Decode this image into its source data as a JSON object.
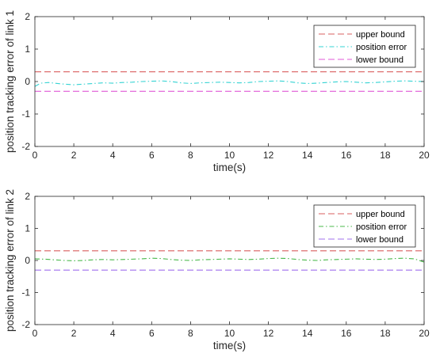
{
  "chart_data": [
    {
      "type": "line",
      "xlabel": "time(s)",
      "ylabel": "position tracking error of link 1",
      "xlim": [
        0,
        20
      ],
      "ylim": [
        -2,
        2
      ],
      "xticks": [
        0,
        2,
        4,
        6,
        8,
        10,
        12,
        14,
        16,
        18,
        20
      ],
      "yticks": [
        -2,
        -1,
        0,
        1,
        2
      ],
      "grid": false,
      "legend": "top-right",
      "series": [
        {
          "name": "upper bound",
          "color": "#d95f5f",
          "style": "dashed",
          "x": [
            0,
            20
          ],
          "y": [
            0.3,
            0.3
          ]
        },
        {
          "name": "position error",
          "color": "#35d3d3",
          "style": "dashdot",
          "x": [
            0,
            0.3,
            0.7,
            1.0,
            1.5,
            2.0,
            2.5,
            3.0,
            3.5,
            4.0,
            4.5,
            5.0,
            5.5,
            6.0,
            6.5,
            7.0,
            7.5,
            8.0,
            8.5,
            9.0,
            9.5,
            10.0,
            10.5,
            11.0,
            11.5,
            12.0,
            12.5,
            13.0,
            13.5,
            14.0,
            14.5,
            15.0,
            15.5,
            16.0,
            16.5,
            17.0,
            17.5,
            18.0,
            18.5,
            19.0,
            19.5,
            20.0
          ],
          "y": [
            -0.15,
            -0.05,
            -0.03,
            -0.05,
            -0.08,
            -0.1,
            -0.08,
            -0.06,
            -0.04,
            -0.05,
            -0.03,
            -0.02,
            0.0,
            0.01,
            0.02,
            0.0,
            -0.04,
            -0.06,
            -0.04,
            -0.03,
            -0.02,
            -0.03,
            -0.04,
            -0.03,
            0.0,
            0.01,
            0.02,
            0.0,
            -0.04,
            -0.06,
            -0.05,
            -0.03,
            -0.01,
            0.0,
            -0.02,
            -0.04,
            -0.03,
            -0.01,
            0.01,
            0.02,
            0.01,
            0.0
          ]
        },
        {
          "name": "lower bound",
          "color": "#e05ad8",
          "style": "dashed",
          "x": [
            0,
            20
          ],
          "y": [
            -0.3,
            -0.3
          ]
        }
      ]
    },
    {
      "type": "line",
      "xlabel": "time(s)",
      "ylabel": "position tracking error of link 2",
      "xlim": [
        0,
        20
      ],
      "ylim": [
        -2,
        2
      ],
      "xticks": [
        0,
        2,
        4,
        6,
        8,
        10,
        12,
        14,
        16,
        18,
        20
      ],
      "yticks": [
        -2,
        -1,
        0,
        1,
        2
      ],
      "grid": false,
      "legend": "top-right",
      "series": [
        {
          "name": "upper bound",
          "color": "#d95f5f",
          "style": "dashed",
          "x": [
            0,
            20
          ],
          "y": [
            0.3,
            0.3
          ]
        },
        {
          "name": "position error",
          "color": "#48b84a",
          "style": "dashdot",
          "x": [
            0,
            0.5,
            1.0,
            1.5,
            2.0,
            2.5,
            3.0,
            3.5,
            4.0,
            4.5,
            5.0,
            5.5,
            6.0,
            6.5,
            7.0,
            7.5,
            8.0,
            8.5,
            9.0,
            9.5,
            10.0,
            10.5,
            11.0,
            11.5,
            12.0,
            12.5,
            13.0,
            13.5,
            14.0,
            14.5,
            15.0,
            15.5,
            16.0,
            16.5,
            17.0,
            17.5,
            18.0,
            18.5,
            19.0,
            19.5,
            20.0
          ],
          "y": [
            0.05,
            0.04,
            0.02,
            0.0,
            -0.01,
            0.0,
            0.02,
            0.03,
            0.02,
            0.03,
            0.04,
            0.05,
            0.07,
            0.06,
            0.03,
            0.01,
            0.0,
            0.02,
            0.03,
            0.04,
            0.05,
            0.04,
            0.03,
            0.04,
            0.06,
            0.07,
            0.06,
            0.03,
            0.01,
            0.0,
            0.02,
            0.03,
            0.04,
            0.05,
            0.04,
            0.03,
            0.04,
            0.06,
            0.07,
            0.05,
            -0.05
          ]
        },
        {
          "name": "lower bound",
          "color": "#a070ee",
          "style": "dashed",
          "x": [
            0,
            20
          ],
          "y": [
            -0.3,
            -0.3
          ]
        }
      ]
    }
  ]
}
